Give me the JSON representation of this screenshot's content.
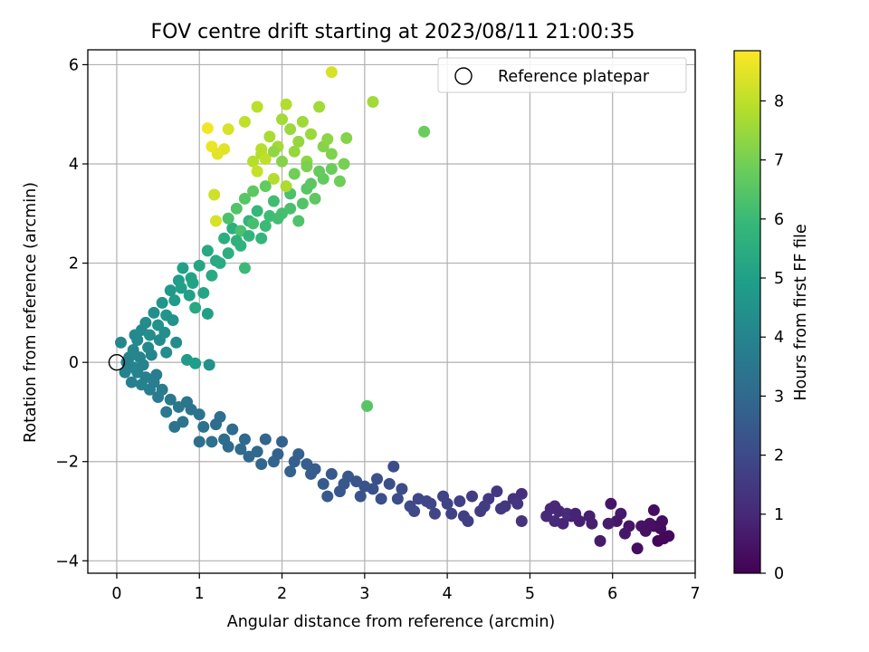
{
  "chart_data": {
    "type": "scatter",
    "title": "FOV centre drift starting at 2023/08/11 21:00:35",
    "xlabel": "Angular distance from reference (arcmin)",
    "ylabel": "Rotation from reference (arcmin)",
    "xlim": [
      -0.35,
      7.0
    ],
    "ylim": [
      -4.25,
      6.3
    ],
    "xticks": [
      "0",
      "1",
      "2",
      "3",
      "4",
      "5",
      "6",
      "7"
    ],
    "yticks": [
      "−4",
      "−2",
      "0",
      "2",
      "4",
      "6"
    ],
    "grid": true,
    "legend": {
      "position": "top-right",
      "label": "Reference platepar"
    },
    "reference_point": {
      "x": 0,
      "y": 0
    },
    "colorbar": {
      "label": "Hours from first FF file",
      "range": [
        0,
        8.85
      ],
      "ticks": [
        "0",
        "1",
        "2",
        "3",
        "4",
        "5",
        "6",
        "7",
        "8"
      ],
      "colormap": "viridis",
      "colors": [
        "#440154",
        "#482878",
        "#3e4989",
        "#31688e",
        "#26828e",
        "#1f9e89",
        "#35b779",
        "#6ece58",
        "#b5de2b",
        "#fde725"
      ]
    },
    "points": [
      [
        6.55,
        -3.6,
        0.1
      ],
      [
        6.62,
        -3.55,
        0.15
      ],
      [
        6.68,
        -3.5,
        0.2
      ],
      [
        6.58,
        -3.35,
        0.25
      ],
      [
        6.5,
        -3.3,
        0.35
      ],
      [
        6.45,
        -3.25,
        0.4
      ],
      [
        6.3,
        -3.75,
        0.3
      ],
      [
        6.35,
        -3.3,
        0.45
      ],
      [
        6.2,
        -3.3,
        0.5
      ],
      [
        6.1,
        -3.05,
        0.6
      ],
      [
        6.05,
        -3.2,
        0.55
      ],
      [
        5.95,
        -3.25,
        0.7
      ],
      [
        5.85,
        -3.6,
        0.65
      ],
      [
        5.72,
        -3.1,
        0.75
      ],
      [
        5.6,
        -3.2,
        0.8
      ],
      [
        5.5,
        -3.1,
        0.85
      ],
      [
        5.4,
        -3.25,
        0.9
      ],
      [
        5.35,
        -3.0,
        0.95
      ],
      [
        5.3,
        -2.9,
        1.0
      ],
      [
        5.2,
        -3.1,
        1.0
      ],
      [
        5.3,
        -3.2,
        1.05
      ],
      [
        5.45,
        -3.05,
        1.1
      ],
      [
        5.98,
        -2.85,
        0.5
      ],
      [
        6.5,
        -2.98,
        0.3
      ],
      [
        4.9,
        -2.65,
        1.2
      ],
      [
        4.9,
        -3.2,
        1.3
      ],
      [
        4.8,
        -2.75,
        1.35
      ],
      [
        4.7,
        -2.9,
        1.4
      ],
      [
        4.6,
        -2.6,
        1.45
      ],
      [
        4.5,
        -2.75,
        1.5
      ],
      [
        4.4,
        -3.0,
        1.55
      ],
      [
        4.3,
        -2.7,
        1.6
      ],
      [
        4.25,
        -3.2,
        1.65
      ],
      [
        4.15,
        -2.8,
        1.7
      ],
      [
        4.05,
        -3.05,
        1.75
      ],
      [
        3.95,
        -2.7,
        1.8
      ],
      [
        3.85,
        -3.05,
        1.85
      ],
      [
        3.75,
        -2.8,
        1.9
      ],
      [
        3.65,
        -2.75,
        1.95
      ],
      [
        3.55,
        -2.9,
        2.0
      ],
      [
        3.45,
        -2.55,
        2.05
      ],
      [
        3.35,
        -2.1,
        2.1
      ],
      [
        3.3,
        -2.45,
        2.15
      ],
      [
        3.2,
        -2.75,
        2.2
      ],
      [
        3.1,
        -2.55,
        2.25
      ],
      [
        3.0,
        -2.5,
        2.3
      ],
      [
        2.9,
        -2.4,
        2.35
      ],
      [
        2.8,
        -2.3,
        2.4
      ],
      [
        2.7,
        -2.6,
        2.45
      ],
      [
        2.6,
        -2.25,
        2.5
      ],
      [
        2.5,
        -2.45,
        2.55
      ],
      [
        2.4,
        -2.15,
        2.6
      ],
      [
        2.3,
        -2.05,
        2.65
      ],
      [
        2.2,
        -1.85,
        2.7
      ],
      [
        2.1,
        -2.2,
        2.75
      ],
      [
        2.0,
        -1.6,
        2.8
      ],
      [
        1.9,
        -2.0,
        2.85
      ],
      [
        1.8,
        -1.55,
        2.9
      ],
      [
        1.7,
        -1.8,
        2.95
      ],
      [
        1.6,
        -1.9,
        3.0
      ],
      [
        1.5,
        -1.75,
        3.05
      ],
      [
        1.4,
        -1.35,
        3.1
      ],
      [
        1.3,
        -1.55,
        3.15
      ],
      [
        1.25,
        -1.1,
        3.2
      ],
      [
        1.15,
        -1.6,
        3.25
      ],
      [
        1.05,
        -1.3,
        3.3
      ],
      [
        1.0,
        -1.05,
        3.35
      ],
      [
        0.9,
        -0.95,
        3.4
      ],
      [
        0.8,
        -1.2,
        3.45
      ],
      [
        0.75,
        -0.9,
        3.5
      ],
      [
        0.65,
        -0.75,
        3.55
      ],
      [
        0.6,
        -1.0,
        3.6
      ],
      [
        0.55,
        -0.55,
        3.65
      ],
      [
        0.5,
        -0.7,
        3.7
      ],
      [
        0.45,
        -0.4,
        3.75
      ],
      [
        0.4,
        -0.55,
        3.8
      ],
      [
        0.35,
        -0.3,
        3.85
      ],
      [
        0.3,
        -0.45,
        3.9
      ],
      [
        0.25,
        -0.2,
        3.95
      ],
      [
        0.2,
        -0.1,
        4.0
      ],
      [
        0.15,
        0.1,
        4.05
      ],
      [
        0.2,
        0.25,
        4.1
      ],
      [
        0.25,
        0.45,
        4.15
      ],
      [
        0.3,
        0.65,
        4.2
      ],
      [
        0.35,
        0.8,
        4.3
      ],
      [
        0.4,
        0.55,
        4.35
      ],
      [
        0.45,
        1.0,
        4.4
      ],
      [
        0.5,
        0.75,
        4.5
      ],
      [
        0.55,
        1.2,
        4.55
      ],
      [
        0.6,
        0.95,
        4.6
      ],
      [
        0.65,
        1.45,
        4.7
      ],
      [
        0.7,
        1.25,
        4.8
      ],
      [
        0.75,
        1.65,
        4.9
      ],
      [
        0.8,
        1.9,
        5.0
      ],
      [
        0.9,
        1.7,
        5.1
      ],
      [
        1.0,
        1.95,
        5.2
      ],
      [
        1.1,
        2.25,
        5.3
      ],
      [
        1.2,
        2.05,
        5.4
      ],
      [
        1.3,
        2.5,
        5.5
      ],
      [
        1.4,
        2.7,
        5.6
      ],
      [
        1.5,
        2.35,
        5.7
      ],
      [
        1.6,
        2.85,
        5.8
      ],
      [
        1.7,
        3.05,
        5.9
      ],
      [
        1.8,
        2.75,
        6.0
      ],
      [
        1.9,
        3.25,
        6.1
      ],
      [
        2.0,
        3.0,
        6.2
      ],
      [
        2.1,
        3.4,
        6.3
      ],
      [
        2.2,
        2.85,
        6.35
      ],
      [
        1.55,
        1.9,
        6.0
      ],
      [
        1.1,
        0.98,
        5.0
      ],
      [
        0.95,
        1.1,
        5.3
      ],
      [
        1.12,
        -0.05,
        4.5
      ],
      [
        0.85,
        0.05,
        4.8
      ],
      [
        0.95,
        -0.02,
        4.9
      ],
      [
        0.6,
        0.2,
        4.3
      ],
      [
        2.3,
        3.5,
        6.5
      ],
      [
        2.4,
        3.3,
        6.6
      ],
      [
        2.5,
        3.7,
        6.7
      ],
      [
        2.6,
        3.9,
        6.8
      ],
      [
        2.7,
        3.65,
        6.9
      ],
      [
        2.75,
        4.0,
        7.0
      ],
      [
        2.6,
        4.2,
        7.1
      ],
      [
        2.5,
        4.35,
        7.2
      ],
      [
        2.3,
        4.05,
        7.3
      ],
      [
        2.2,
        4.45,
        7.4
      ],
      [
        2.1,
        4.7,
        7.5
      ],
      [
        2.0,
        4.9,
        7.6
      ],
      [
        1.95,
        4.35,
        7.65
      ],
      [
        1.85,
        4.55,
        7.7
      ],
      [
        1.75,
        4.2,
        7.8
      ],
      [
        1.65,
        4.05,
        7.9
      ],
      [
        1.55,
        4.85,
        8.0
      ],
      [
        1.7,
        5.15,
        7.95
      ],
      [
        2.25,
        4.85,
        7.55
      ],
      [
        2.05,
        5.2,
        7.8
      ],
      [
        2.45,
        5.15,
        7.6
      ],
      [
        2.55,
        4.5,
        7.3
      ],
      [
        2.78,
        4.52,
        7.2
      ],
      [
        3.1,
        5.25,
        7.6
      ],
      [
        2.6,
        5.85,
        8.3
      ],
      [
        3.72,
        4.65,
        6.8
      ],
      [
        3.03,
        -0.88,
        6.5
      ],
      [
        1.1,
        4.72,
        8.7
      ],
      [
        1.15,
        4.35,
        8.6
      ],
      [
        1.22,
        4.2,
        8.5
      ],
      [
        1.3,
        4.3,
        8.45
      ],
      [
        1.35,
        4.7,
        8.35
      ],
      [
        1.18,
        3.38,
        8.2
      ],
      [
        1.7,
        3.85,
        8.1
      ],
      [
        1.8,
        4.1,
        8.0
      ],
      [
        1.9,
        3.7,
        7.85
      ],
      [
        2.05,
        3.55,
        7.75
      ],
      [
        1.75,
        4.3,
        7.9
      ],
      [
        1.65,
        2.8,
        6.2
      ],
      [
        1.5,
        2.65,
        6.3
      ],
      [
        1.2,
        2.85,
        8.3
      ],
      [
        0.05,
        0.4,
        4.1
      ],
      [
        0.1,
        -0.2,
        3.9
      ],
      [
        0.12,
        0.0,
        3.95
      ],
      [
        0.18,
        -0.4,
        3.85
      ],
      [
        0.22,
        0.55,
        4.2
      ],
      [
        0.28,
        0.1,
        4.0
      ],
      [
        0.32,
        -0.05,
        3.95
      ],
      [
        0.38,
        0.3,
        4.15
      ],
      [
        0.42,
        0.15,
        4.05
      ],
      [
        0.48,
        -0.25,
        3.8
      ],
      [
        0.52,
        0.45,
        4.25
      ],
      [
        0.58,
        0.6,
        4.4
      ],
      [
        0.68,
        0.85,
        4.5
      ],
      [
        0.72,
        0.4,
        4.3
      ],
      [
        0.78,
        1.5,
        5.0
      ],
      [
        0.88,
        1.35,
        5.05
      ],
      [
        0.92,
        1.6,
        5.1
      ],
      [
        1.05,
        1.4,
        5.2
      ],
      [
        1.15,
        1.75,
        5.35
      ],
      [
        1.25,
        2.0,
        5.45
      ],
      [
        1.35,
        2.2,
        5.55
      ],
      [
        1.45,
        2.45,
        5.65
      ],
      [
        1.6,
        2.55,
        5.75
      ],
      [
        1.75,
        2.5,
        5.85
      ],
      [
        1.85,
        2.95,
        6.05
      ],
      [
        1.95,
        2.9,
        6.15
      ],
      [
        2.1,
        3.1,
        6.25
      ],
      [
        2.25,
        3.2,
        6.4
      ],
      [
        2.35,
        3.6,
        6.55
      ],
      [
        2.45,
        3.85,
        6.75
      ],
      [
        1.45,
        3.1,
        6.4
      ],
      [
        1.35,
        2.9,
        6.3
      ],
      [
        1.55,
        3.3,
        6.5
      ],
      [
        1.65,
        3.45,
        6.6
      ],
      [
        1.8,
        3.55,
        6.7
      ],
      [
        2.15,
        3.8,
        6.9
      ],
      [
        2.3,
        3.95,
        7.05
      ],
      [
        2.0,
        4.05,
        7.2
      ],
      [
        1.9,
        4.25,
        7.35
      ],
      [
        2.15,
        4.25,
        7.45
      ],
      [
        2.35,
        4.6,
        7.5
      ],
      [
        0.7,
        -1.3,
        3.4
      ],
      [
        0.85,
        -0.8,
        3.45
      ],
      [
        1.0,
        -1.6,
        3.2
      ],
      [
        1.2,
        -1.25,
        3.15
      ],
      [
        1.35,
        -1.7,
        3.05
      ],
      [
        1.55,
        -1.55,
        3.0
      ],
      [
        1.75,
        -2.05,
        2.9
      ],
      [
        1.95,
        -1.85,
        2.8
      ],
      [
        2.15,
        -2.0,
        2.7
      ],
      [
        2.35,
        -2.25,
        2.6
      ],
      [
        2.55,
        -2.7,
        2.5
      ],
      [
        2.75,
        -2.45,
        2.4
      ],
      [
        2.95,
        -2.7,
        2.3
      ],
      [
        3.15,
        -2.35,
        2.2
      ],
      [
        3.4,
        -2.75,
        2.1
      ],
      [
        3.6,
        -3.0,
        2.0
      ],
      [
        3.8,
        -2.85,
        1.9
      ],
      [
        4.0,
        -2.85,
        1.8
      ],
      [
        4.2,
        -3.1,
        1.7
      ],
      [
        4.45,
        -2.9,
        1.6
      ],
      [
        4.65,
        -2.95,
        1.5
      ],
      [
        4.85,
        -2.85,
        1.4
      ],
      [
        5.25,
        -2.95,
        1.0
      ],
      [
        5.55,
        -3.05,
        0.85
      ],
      [
        5.75,
        -3.25,
        0.75
      ],
      [
        6.15,
        -3.45,
        0.55
      ],
      [
        6.4,
        -3.4,
        0.4
      ],
      [
        6.6,
        -3.2,
        0.3
      ]
    ]
  }
}
